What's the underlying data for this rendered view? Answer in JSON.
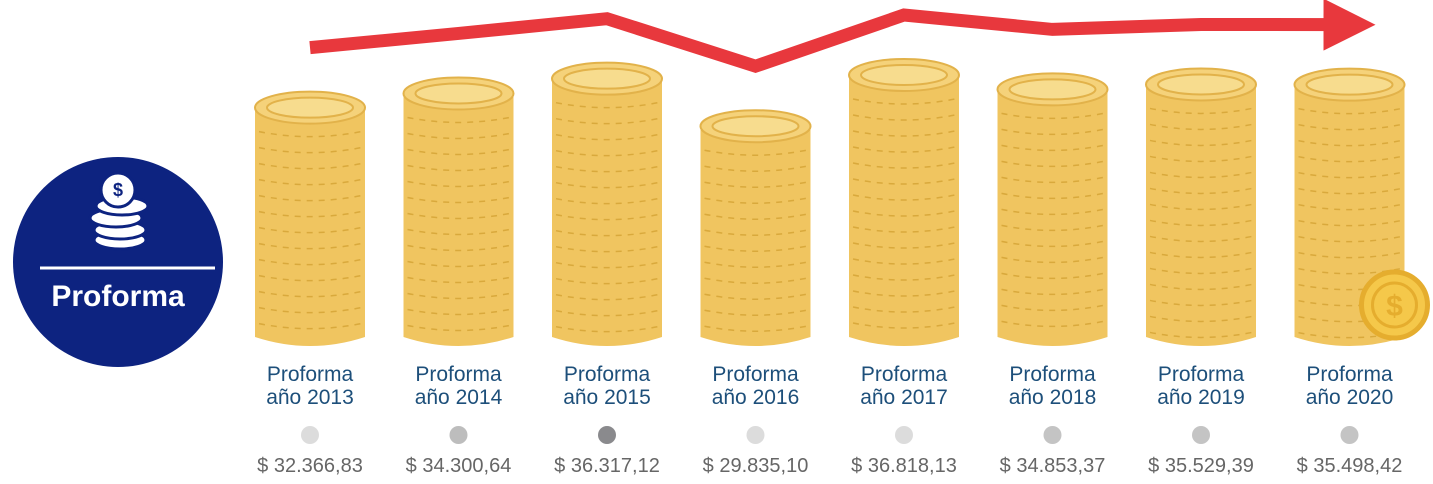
{
  "chart_data": {
    "type": "coin-stack",
    "badge": "Proforma",
    "categories": [
      "Proforma año 2013",
      "Proforma año 2014",
      "Proforma año 2015",
      "Proforma año 2016",
      "Proforma año 2017",
      "Proforma año 2018",
      "Proforma año 2019",
      "Proforma año 2020"
    ],
    "values": [
      32366.83,
      34300.64,
      36317.12,
      29835.1,
      36818.13,
      34853.37,
      35529.39,
      35498.42
    ],
    "value_labels": [
      "$ 32.366,83",
      "$ 34.300,64",
      "$ 36.317,12",
      "$ 29.835,10",
      "$ 36.818,13",
      "$ 34.853,37",
      "$ 35.529,39",
      "$ 35.498,42"
    ],
    "color": "#f0c560",
    "line_color": "#e8383d",
    "marker_colors": [
      "#dcdcdc",
      "#bdbdbd",
      "#8a8a8d",
      "#dcdcdc",
      "#dcdcdc",
      "#c4c4c4",
      "#c4c4c4",
      "#c4c4c4"
    ]
  }
}
